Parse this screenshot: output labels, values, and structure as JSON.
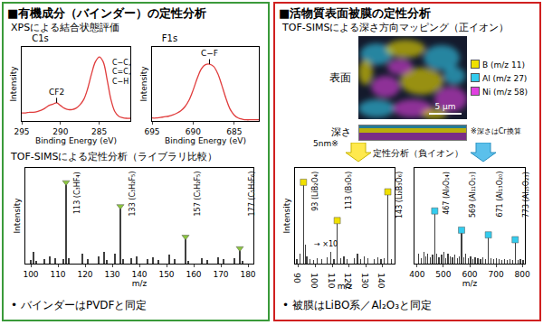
{
  "left_panel": {
    "title": "■有機成分（バインダー）の定性分析",
    "xps_heading": "XPSによる結合状態評価",
    "tof_heading": "TOF-SIMSによる定性分析（ライブラリ比較）",
    "conclusion": "• バインダーはPVDFと同定"
  },
  "right_panel": {
    "title": "■活物質表面被膜の定性分析",
    "mapping_heading": "TOF-SIMSによる深さ方向マッピング（正イオン）",
    "surface_label": "表面",
    "scale_bar": "5 μm",
    "depth_label": "深さ",
    "depth_scale": "5nm※",
    "depth_note": "※深さはCr換算",
    "map_legend": [
      {
        "label": "B (m/z 11)",
        "color": "#f0e000"
      },
      {
        "label": "Al (m/z 27)",
        "color": "#33ccee"
      },
      {
        "label": "Ni (m/z 58)",
        "color": "#e040e0"
      }
    ],
    "analysis_heading": "定性分析（負イオン）",
    "conclusion": "• 被膜はLiBO系／Al₂O₃と同定"
  },
  "chart_data": [
    {
      "type": "line",
      "title": "C1s",
      "x_label": "Binding Energy (eV)",
      "y_label": "Intensity",
      "xlim": [
        295,
        281
      ],
      "xticks": [
        295,
        290,
        285
      ],
      "ylim": [
        0,
        110
      ],
      "tick_labels": "x",
      "grid": false,
      "series": [
        {
          "color": "#e03c3c",
          "x": [
            295,
            294.5,
            294,
            293.5,
            293,
            292.5,
            292,
            291.5,
            291,
            290.5,
            290,
            289.5,
            289,
            288.5,
            288,
            287.5,
            287,
            286.5,
            286,
            285.5,
            285,
            284.5,
            284,
            283.5,
            283,
            282.5,
            282,
            281.5,
            281
          ],
          "values": [
            12,
            12,
            13,
            13,
            14,
            16,
            19,
            23,
            25,
            27,
            23,
            19,
            17,
            17,
            19,
            24,
            32,
            48,
            70,
            88,
            95,
            88,
            62,
            32,
            14,
            7,
            5,
            4,
            4
          ]
        }
      ],
      "peak_labels": [
        {
          "x": 290.5,
          "label": "CF2"
        },
        {
          "x": 285,
          "label": [
            "C−C,",
            "C=C,",
            "C−H"
          ]
        }
      ]
    },
    {
      "type": "line",
      "title": "F1s",
      "x_label": "Binding Energy (eV)",
      "y_label": "Intensity",
      "xlim": [
        695,
        682
      ],
      "xticks": [
        695,
        690,
        685
      ],
      "ylim": [
        0,
        125
      ],
      "tick_labels": "x",
      "grid": false,
      "series": [
        {
          "color": "#e03c3c",
          "x": [
            695,
            694.5,
            694,
            693.5,
            693,
            692.5,
            692,
            691.5,
            691,
            690.5,
            690,
            689.5,
            689,
            688.5,
            688,
            687.5,
            687,
            686.5,
            686,
            685.5,
            685,
            684.5,
            684,
            683.5,
            683,
            682.5,
            682
          ],
          "values": [
            5,
            5,
            6,
            7,
            8,
            10,
            13,
            17,
            24,
            35,
            52,
            72,
            88,
            95,
            96,
            92,
            80,
            60,
            38,
            20,
            10,
            5,
            3,
            2,
            2,
            2,
            2
          ]
        }
      ],
      "peak_labels": [
        {
          "x": 688,
          "label": "C−F"
        }
      ]
    },
    {
      "type": "bar",
      "x_label": "m/z",
      "y_label": "Intensity",
      "xlim": [
        98,
        182
      ],
      "xticks": [
        100,
        110,
        120,
        130,
        140,
        150,
        160,
        170,
        180
      ],
      "ylim": [
        0,
        1
      ],
      "tick_labels": "x",
      "grid": false,
      "series": [
        {
          "type": "bar",
          "color": "#404040",
          "x": [
            100,
            101,
            102,
            105,
            107,
            109,
            112,
            113,
            114,
            119,
            121,
            125,
            127,
            128,
            131,
            133,
            134,
            137,
            139,
            143,
            145,
            147,
            151,
            153,
            157,
            158,
            163,
            165,
            169,
            171,
            175,
            177,
            178
          ],
          "values": [
            0.04,
            0.12,
            0.03,
            0.05,
            0.08,
            0.06,
            0.05,
            0.85,
            0.06,
            0.1,
            0.05,
            0.08,
            0.12,
            0.04,
            0.1,
            0.6,
            0.05,
            0.06,
            0.08,
            0.05,
            0.07,
            0.04,
            0.09,
            0.05,
            0.28,
            0.03,
            0.06,
            0.04,
            0.07,
            0.05,
            0.06,
            0.16,
            0.03
          ]
        },
        {
          "type": "scatter",
          "marker": "triangle-down",
          "color": "#8cc63f",
          "x": [
            113,
            133,
            157,
            177
          ],
          "values": [
            0.85,
            0.6,
            0.28,
            0.16
          ]
        }
      ],
      "peak_labels": [
        {
          "x": 113,
          "label": "113 (C₃HF₄)"
        },
        {
          "x": 133,
          "label": "133 (C₃H₂F₅)"
        },
        {
          "x": 157,
          "label": "157 (C₅H₂F₅)"
        },
        {
          "x": 177,
          "label": "177 (C₅H₃F₆)"
        }
      ]
    },
    {
      "type": "bar",
      "x_label": "m/z",
      "y_label": "Intensity",
      "xlim": [
        88,
        147
      ],
      "xticks": [
        90,
        100,
        110,
        120,
        130,
        140
      ],
      "ylim": [
        0,
        1
      ],
      "tick_labels": "x",
      "grid": false,
      "series": [
        {
          "type": "bar",
          "color": "#404040",
          "x": [
            89,
            91,
            93,
            94,
            95,
            97,
            99,
            101,
            104,
            107,
            109,
            111,
            113,
            115,
            117,
            119,
            123,
            125,
            127,
            129,
            131,
            135,
            137,
            139,
            141,
            143,
            145
          ],
          "values": [
            0.05,
            0.1,
            0.85,
            0.2,
            0.08,
            0.05,
            0.04,
            0.06,
            0.05,
            0.07,
            0.12,
            0.05,
            0.45,
            0.06,
            0.08,
            0.05,
            0.06,
            0.1,
            0.05,
            0.08,
            0.06,
            0.05,
            0.07,
            0.05,
            0.06,
            0.75,
            0.05
          ]
        },
        {
          "type": "scatter",
          "marker": "square",
          "color": "#f0e000",
          "x": [
            93,
            113,
            143
          ],
          "values": [
            0.85,
            0.45,
            0.75
          ]
        }
      ],
      "peak_labels": [
        {
          "x": 93,
          "label": "93 (LiB₂O₄)"
        },
        {
          "x": 113,
          "label": "113 (B₃O₅)"
        },
        {
          "x": 143,
          "label": "143 (Li₂B₃O₆)"
        }
      ],
      "annotations": [
        {
          "x": 98,
          "text": "→ ×10"
        }
      ]
    },
    {
      "type": "bar",
      "x_label": "m/z",
      "xlim": [
        390,
        810
      ],
      "xticks": [
        400,
        500,
        600,
        700,
        800
      ],
      "ylim": [
        0,
        1
      ],
      "tick_labels": "x",
      "grid": false,
      "series": [
        {
          "type": "bar",
          "color": "#404040",
          "x": [
            405,
            415,
            425,
            433,
            441,
            451,
            459,
            467,
            475,
            483,
            493,
            501,
            509,
            517,
            527,
            535,
            543,
            553,
            561,
            569,
            577,
            585,
            595,
            603,
            613,
            621,
            631,
            641,
            651,
            661,
            671,
            681,
            691,
            701,
            711,
            723,
            733,
            743,
            753,
            763,
            773,
            783,
            793,
            803
          ],
          "values": [
            0.1,
            0.06,
            0.12,
            0.08,
            0.1,
            0.07,
            0.09,
            0.55,
            0.1,
            0.07,
            0.09,
            0.12,
            0.06,
            0.1,
            0.08,
            0.07,
            0.09,
            0.06,
            0.08,
            0.35,
            0.07,
            0.1,
            0.06,
            0.08,
            0.05,
            0.07,
            0.06,
            0.05,
            0.07,
            0.05,
            0.3,
            0.06,
            0.05,
            0.06,
            0.05,
            0.04,
            0.05,
            0.04,
            0.05,
            0.04,
            0.25,
            0.04,
            0.05,
            0.04
          ]
        },
        {
          "type": "scatter",
          "marker": "square",
          "color": "#33ccee",
          "x": [
            467,
            569,
            671,
            773
          ],
          "values": [
            0.55,
            0.35,
            0.3,
            0.25
          ]
        }
      ],
      "peak_labels": [
        {
          "x": 467,
          "label": "467 (Al₉O₁₄)"
        },
        {
          "x": 569,
          "label": "569 (Al₁₁O₁₇)"
        },
        {
          "x": 671,
          "label": "671 (Al₁₃O₂₀)"
        },
        {
          "x": 773,
          "label": "773 (Al₁₅O₂₃)"
        }
      ]
    }
  ]
}
